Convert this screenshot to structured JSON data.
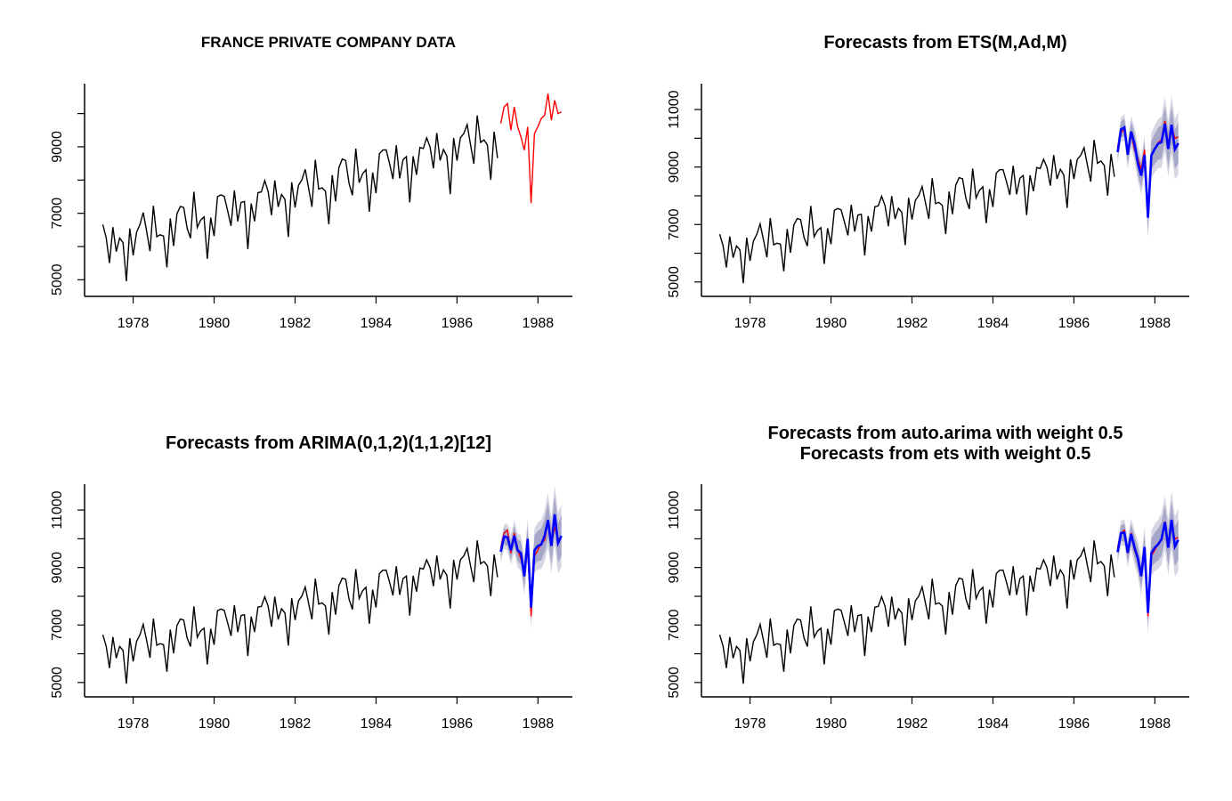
{
  "chart_data": [
    {
      "type": "line",
      "title": "FRANCE PRIVATE COMPANY DATA",
      "xlabel": "",
      "ylabel": "",
      "x_ticks": [
        "1978",
        "1980",
        "1982",
        "1984",
        "1986",
        "1988"
      ],
      "y_ticks": [
        "5000",
        "7000",
        "9000"
      ],
      "series": [
        {
          "role": "observed",
          "color": "#000000"
        },
        {
          "role": "actual_holdout",
          "color": "#ff0000"
        }
      ],
      "forecast": null
    },
    {
      "type": "line",
      "title": "Forecasts from ETS(M,Ad,M)",
      "xlabel": "",
      "ylabel": "",
      "x_ticks": [
        "1978",
        "1980",
        "1982",
        "1984",
        "1986",
        "1988"
      ],
      "y_ticks": [
        "5000",
        "7000",
        "9000",
        "11000"
      ],
      "series": [
        {
          "role": "observed",
          "color": "#000000"
        },
        {
          "role": "actual_holdout",
          "color": "#ff0000"
        },
        {
          "role": "forecast_mean",
          "color": "#0000ff"
        }
      ],
      "forecast": {
        "offsets": [
          -180,
          110,
          80,
          -70,
          30,
          200,
          -160,
          -200,
          -180,
          -60,
          0,
          30,
          -40,
          -80,
          -100,
          -170,
          70,
          -380,
          -220
        ]
      }
    },
    {
      "type": "line",
      "title": "Forecasts from ARIMA(0,1,2)(1,1,2)[12]",
      "xlabel": "",
      "ylabel": "",
      "x_ticks": [
        "1978",
        "1980",
        "1982",
        "1984",
        "1986",
        "1988"
      ],
      "y_ticks": [
        "5000",
        "7000",
        "9000",
        "11000"
      ],
      "series": [
        {
          "role": "observed",
          "color": "#000000"
        },
        {
          "role": "actual_holdout",
          "color": "#ff0000"
        },
        {
          "role": "forecast_mean",
          "color": "#0000ff"
        }
      ],
      "forecast": {
        "offsets": [
          -150,
          -120,
          -250,
          100,
          -100,
          0,
          200,
          -200,
          400,
          300,
          200,
          150,
          -50,
          150,
          50,
          -50,
          450,
          -150,
          50
        ]
      }
    },
    {
      "type": "line",
      "title": "Forecasts from auto.arima with weight 0.5",
      "subtitle": "Forecasts from ets with weight 0.5",
      "xlabel": "",
      "ylabel": "",
      "x_ticks": [
        "1978",
        "1980",
        "1982",
        "1984",
        "1986",
        "1988"
      ],
      "y_ticks": [
        "5000",
        "7000",
        "9000",
        "11000"
      ],
      "series": [
        {
          "role": "observed",
          "color": "#000000"
        },
        {
          "role": "actual_holdout",
          "color": "#ff0000"
        },
        {
          "role": "forecast_mean",
          "color": "#0000ff"
        }
      ],
      "forecast": {
        "offsets": [
          -165,
          -5,
          -85,
          15,
          -35,
          100,
          20,
          -200,
          110,
          120,
          100,
          90,
          -45,
          35,
          -25,
          -110,
          260,
          -265,
          -85
        ]
      }
    }
  ]
}
